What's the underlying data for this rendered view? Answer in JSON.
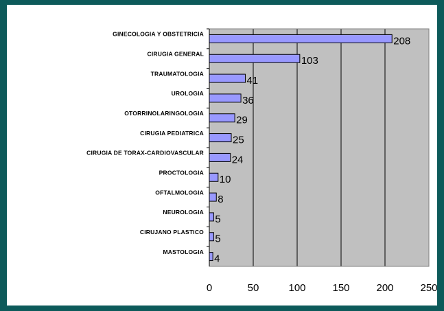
{
  "chart_data": {
    "type": "bar",
    "categories": [
      "GINECOLOGIA Y OBSTETRICIA",
      "CIRUGIA GENERAL",
      "TRAUMATOLOGIA",
      "UROLOGIA",
      "OTORRINOLARINGOLOGIA",
      "CIRUGIA PEDIATRICA",
      "CIRUGIA DE TORAX-CARDIOVASCULAR",
      "PROCTOLOGIA",
      "OFTALMOLOGIA",
      "NEUROLOGIA",
      "CIRUJANO PLASTICO",
      "MASTOLOGIA"
    ],
    "values": [
      208,
      103,
      41,
      36,
      29,
      25,
      24,
      10,
      8,
      5,
      5,
      4
    ],
    "color": "#9999ff",
    "xlim": [
      0,
      250
    ],
    "xticks": [
      0,
      50,
      100,
      150,
      200,
      250
    ],
    "grid": true
  }
}
